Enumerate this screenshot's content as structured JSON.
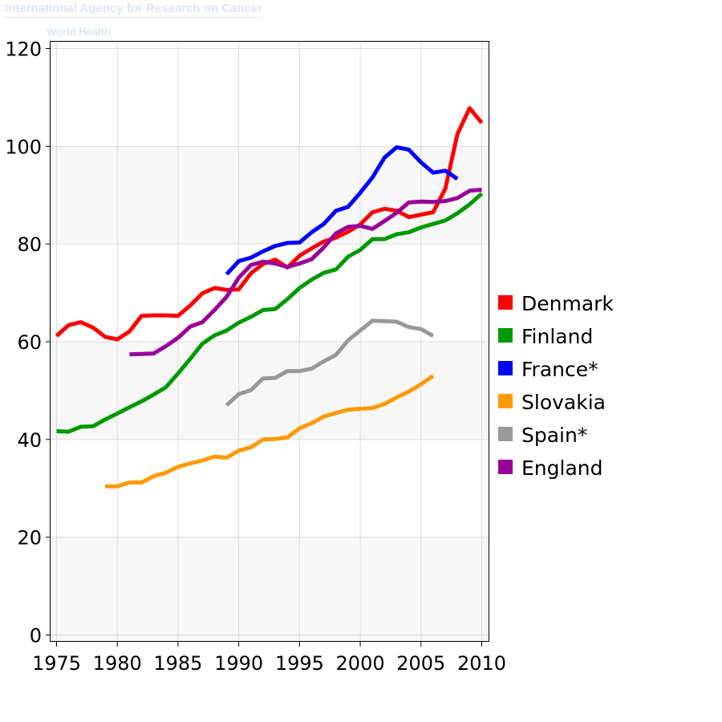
{
  "watermark": {
    "organization": "International Agency for Research on Cancer",
    "who": "World Health"
  },
  "colors": {
    "Denmark": "#ff0000",
    "Finland": "#009900",
    "France*": "#0000ff",
    "Slovakia": "#ff9900",
    "Spain*": "#999999",
    "England": "#990099"
  },
  "chart_data": {
    "type": "line",
    "title": "",
    "xlabel": "",
    "ylabel": "",
    "xlim": [
      1975,
      2010
    ],
    "ylim": [
      0,
      120
    ],
    "x_ticks": [
      1975,
      1980,
      1985,
      1990,
      1995,
      2000,
      2005,
      2010
    ],
    "y_ticks": [
      0,
      20,
      40,
      60,
      80,
      100,
      120
    ],
    "grid": true,
    "legend_position": "right",
    "series": [
      {
        "name": "Denmark",
        "x": [
          1975,
          1976,
          1977,
          1978,
          1979,
          1980,
          1981,
          1982,
          1983,
          1984,
          1985,
          1986,
          1987,
          1988,
          1989,
          1990,
          1991,
          1992,
          1993,
          1994,
          1995,
          1996,
          1997,
          1998,
          1999,
          2000,
          2001,
          2002,
          2003,
          2004,
          2005,
          2006,
          2007,
          2008,
          2009,
          2010
        ],
        "y": [
          61.2,
          63.4,
          64.0,
          62.9,
          61.0,
          60.5,
          62.1,
          65.3,
          65.4,
          65.4,
          65.3,
          67.4,
          69.9,
          71.0,
          70.6,
          70.7,
          74.0,
          75.9,
          76.8,
          75.2,
          77.6,
          79.1,
          80.5,
          81.3,
          82.5,
          84.0,
          86.5,
          87.2,
          86.8,
          85.5,
          86.0,
          86.5,
          91.3,
          102.5,
          107.8,
          104.8
        ]
      },
      {
        "name": "Finland",
        "x": [
          1975,
          1976,
          1977,
          1978,
          1979,
          1980,
          1981,
          1982,
          1983,
          1984,
          1985,
          1986,
          1987,
          1988,
          1989,
          1990,
          1991,
          1992,
          1993,
          1994,
          1995,
          1996,
          1997,
          1998,
          1999,
          2000,
          2001,
          2002,
          2003,
          2004,
          2005,
          2006,
          2007,
          2008,
          2009,
          2010
        ],
        "y": [
          41.7,
          41.6,
          42.6,
          42.7,
          44.1,
          45.3,
          46.6,
          47.8,
          49.2,
          50.7,
          53.5,
          56.5,
          59.6,
          61.3,
          62.3,
          63.9,
          65.1,
          66.5,
          66.7,
          68.7,
          71.0,
          72.7,
          74.1,
          74.8,
          77.4,
          78.8,
          81.0,
          81.0,
          82.0,
          82.4,
          83.4,
          84.1,
          84.8,
          86.3,
          88.1,
          90.3
        ]
      },
      {
        "name": "France*",
        "x": [
          1989,
          1990,
          1991,
          1992,
          1993,
          1994,
          1995,
          1996,
          1997,
          1998,
          1999,
          2000,
          2001,
          2002,
          2003,
          2004,
          2005,
          2006,
          2007,
          2008
        ],
        "y": [
          73.8,
          76.5,
          77.2,
          78.5,
          79.6,
          80.2,
          80.3,
          82.4,
          84.1,
          86.8,
          87.6,
          90.5,
          93.6,
          97.7,
          99.8,
          99.3,
          96.7,
          94.6,
          95.0,
          93.3
        ]
      },
      {
        "name": "Slovakia",
        "x": [
          1979,
          1980,
          1981,
          1982,
          1983,
          1984,
          1985,
          1986,
          1987,
          1988,
          1989,
          1990,
          1991,
          1992,
          1993,
          1994,
          1995,
          1996,
          1997,
          1998,
          1999,
          2000,
          2001,
          2002,
          2003,
          2004,
          2005,
          2006
        ],
        "y": [
          30.4,
          30.4,
          31.2,
          31.2,
          32.5,
          33.2,
          34.4,
          35.1,
          35.7,
          36.5,
          36.3,
          37.7,
          38.4,
          40.0,
          40.1,
          40.4,
          42.3,
          43.3,
          44.7,
          45.4,
          46.1,
          46.3,
          46.4,
          47.3,
          48.6,
          49.8,
          51.3,
          53.0
        ]
      },
      {
        "name": "Spain*",
        "x": [
          1989,
          1990,
          1991,
          1992,
          1993,
          1994,
          1995,
          1996,
          1997,
          1998,
          1999,
          2000,
          2001,
          2002,
          2003,
          2004,
          2005,
          2006
        ],
        "y": [
          47.0,
          49.3,
          50.1,
          52.5,
          52.6,
          54.0,
          54.0,
          54.5,
          56.0,
          57.3,
          60.3,
          62.3,
          64.3,
          64.2,
          64.1,
          63.0,
          62.6,
          61.2
        ]
      },
      {
        "name": "England",
        "x": [
          1981,
          1982,
          1983,
          1984,
          1985,
          1986,
          1987,
          1988,
          1989,
          1990,
          1991,
          1992,
          1993,
          1994,
          1995,
          1996,
          1997,
          1998,
          1999,
          2000,
          2001,
          2002,
          2003,
          2004,
          2005,
          2006,
          2007,
          2008,
          2009,
          2010
        ],
        "y": [
          57.4,
          57.5,
          57.6,
          59.1,
          60.8,
          63.1,
          64.0,
          66.5,
          69.2,
          73.1,
          75.7,
          76.4,
          76.0,
          75.3,
          76.0,
          76.9,
          79.3,
          82.2,
          83.5,
          83.7,
          83.1,
          84.7,
          86.4,
          88.5,
          88.7,
          88.6,
          88.8,
          89.4,
          90.9,
          91.1
        ]
      }
    ]
  }
}
